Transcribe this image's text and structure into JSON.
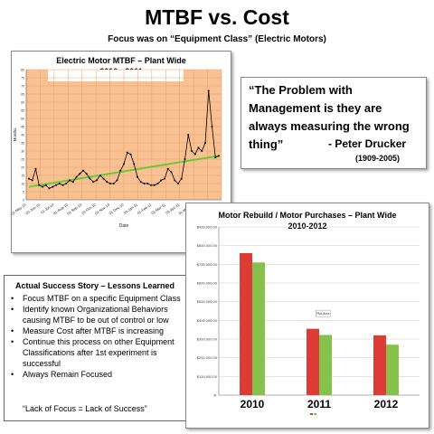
{
  "page": {
    "title": "MTBF vs. Cost",
    "subtitle": "Focus was on “Equipment Class” (Electric Motors)"
  },
  "quote": {
    "text": "“The Problem with Management is they are always measuring the wrong thing”",
    "author": "- Peter Drucker",
    "years": "(1909-2005)"
  },
  "story": {
    "title": "Actual Success Story – Lessons Learned",
    "items": [
      "Focus MTBF on a specific Equipment Class",
      "Identify known Organizational Behaviors causing MTBF to be out of control or low",
      "Measure Cost after MTBF is increasing",
      "Continue this process on other Equipment Classifications after 1st experiment is successful",
      "Always Remain Focused"
    ],
    "footer": "“Lack of Focus = Lack of Success”"
  },
  "chart_data": [
    {
      "type": "line",
      "title": "Electric Motor MTBF – Plant Wide",
      "subtitle": "2010 - 2011",
      "xlabel": "Date",
      "ylabel": "Months",
      "ylim": [
        0,
        80
      ],
      "yticks": [
        0,
        5,
        10,
        15,
        20,
        25,
        30,
        35,
        40,
        45,
        50,
        55,
        60,
        65,
        70,
        75,
        80
      ],
      "x_tick_labels": [
        "01-May-10",
        "01-Jun-10",
        "01-Jul-10",
        "01-Aug-10",
        "01-Sep-10",
        "01-Oct-10",
        "01-Nov-10",
        "01-Dec-10",
        "01-Jan-11",
        "01-Feb-11",
        "01-Mar-11",
        "01-Apr-11",
        "01-May-11",
        "01-Jun-11",
        "01-Jul-11"
      ],
      "background": "#f8c193",
      "series": [
        {
          "color": "#000000",
          "values": [
            13,
            12,
            19,
            9,
            8,
            9,
            7,
            8,
            9,
            10,
            9,
            10,
            12,
            11,
            14,
            16,
            18,
            16,
            13,
            11,
            12,
            15,
            13,
            11,
            10,
            10,
            12,
            18,
            22,
            29,
            28,
            22,
            14,
            11,
            10,
            10,
            9,
            9,
            10,
            12,
            13,
            19,
            17,
            12,
            10,
            13,
            25,
            40,
            30,
            28,
            32,
            30,
            35,
            67,
            45,
            26,
            27
          ]
        },
        {
          "color": "#66cc33",
          "trend": [
            8,
            27
          ]
        }
      ],
      "grid": true
    },
    {
      "type": "bar",
      "title": "Motor Rebuild / Motor Purchases – Plant Wide",
      "subtitle": "2010-2012",
      "categories": [
        "2010",
        "2011",
        "2012"
      ],
      "series": [
        {
          "color": "#dd3b36",
          "values": [
            760000,
            355000,
            320000
          ]
        },
        {
          "color": "#86c14b",
          "values": [
            710000,
            322000,
            270000
          ]
        }
      ],
      "ylim": [
        0,
        900000
      ],
      "yticks": [
        "$-",
        "$100,000.00",
        "$200,000.00",
        "$300,000.00",
        "$400,000.00",
        "$500,000.00",
        "$600,000.00",
        "$700,000.00",
        "$800,000.00",
        "$900,000.00"
      ],
      "annotation": "Plot Area",
      "grid": true
    }
  ]
}
